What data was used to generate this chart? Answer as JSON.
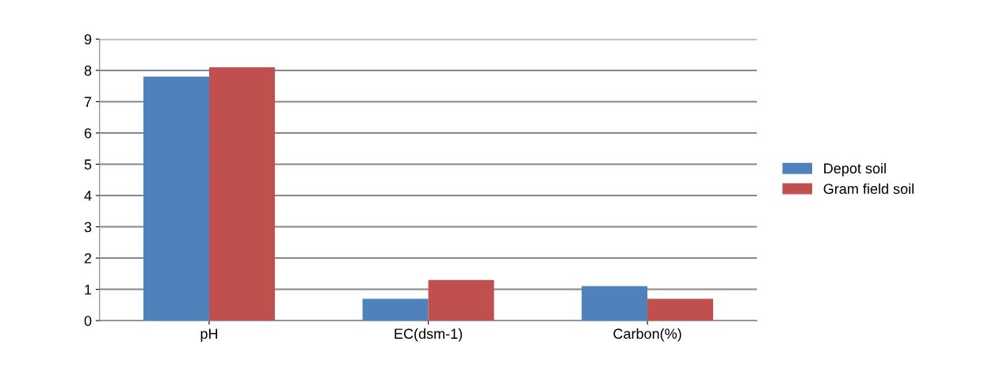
{
  "chart_data": {
    "type": "bar",
    "categories": [
      "pH",
      "EC(dsm-1)",
      "Carbon(%)"
    ],
    "series": [
      {
        "name": "Depot soil",
        "color": "#4f81bd",
        "values": [
          7.8,
          0.7,
          1.1
        ]
      },
      {
        "name": "Gram field soil",
        "color": "#c0504d",
        "values": [
          8.1,
          1.3,
          0.7
        ]
      }
    ],
    "ylim": [
      0,
      9
    ],
    "yticks": [
      0,
      1,
      2,
      3,
      4,
      5,
      6,
      7,
      8,
      9
    ],
    "grid": "y",
    "legend": "right"
  }
}
